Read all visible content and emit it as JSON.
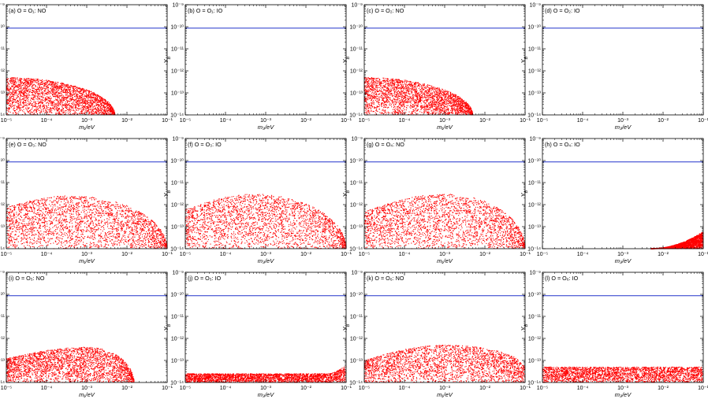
{
  "figure": {
    "colors": {
      "scatter": "#ff0000",
      "bound": "#2233cc",
      "frame": "#000000"
    },
    "grid": false
  },
  "chart_data": [
    {
      "id": "a",
      "type": "scatter",
      "label": "(a) O = O₁: NO",
      "xlabel": "m₁/eV",
      "ylabel": "Y_B",
      "x_scale": "log",
      "y_scale": "log",
      "xlim": [
        1e-05,
        0.1
      ],
      "ylim": [
        1e-14,
        1e-09
      ],
      "xticks": [
        "10⁻⁵",
        "10⁻⁴",
        "10⁻³",
        "10⁻²",
        "10⁻¹"
      ],
      "yticks": [
        "10⁻¹⁴",
        "10⁻¹³",
        "10⁻¹²",
        "10⁻¹¹",
        "10⁻¹⁰",
        "10⁻⁹"
      ],
      "bound_line": 8.7e-11,
      "region": {
        "shape": "decay",
        "peak_x": 1e-05,
        "peak_y": 5e-13,
        "x_end": 0.005,
        "y_floor": 1e-14
      }
    },
    {
      "id": "b",
      "type": "scatter",
      "label": "(b) O = O₁: IO",
      "xlabel": "m₃/eV",
      "ylabel": "Y_B",
      "x_scale": "log",
      "y_scale": "log",
      "xlim": [
        1e-05,
        0.1
      ],
      "ylim": [
        1e-14,
        1e-09
      ],
      "xticks": [
        "10⁻⁵",
        "10⁻⁴",
        "10⁻³",
        "10⁻²",
        "10⁻¹"
      ],
      "yticks": [
        "10⁻¹⁴",
        "10⁻¹³",
        "10⁻¹²",
        "10⁻¹¹",
        "10⁻¹⁰",
        "10⁻⁹"
      ],
      "bound_line": 8.7e-11,
      "region": null
    },
    {
      "id": "c",
      "type": "scatter",
      "label": "(c) O = O₂: NO",
      "xlabel": "m₁/eV",
      "ylabel": "Y_B",
      "x_scale": "log",
      "y_scale": "log",
      "xlim": [
        1e-05,
        0.1
      ],
      "ylim": [
        1e-14,
        1e-09
      ],
      "xticks": [
        "10⁻⁵",
        "10⁻⁴",
        "10⁻³",
        "10⁻²",
        "10⁻¹"
      ],
      "yticks": [
        "10⁻¹⁴",
        "10⁻¹³",
        "10⁻¹²",
        "10⁻¹¹",
        "10⁻¹⁰",
        "10⁻⁹"
      ],
      "bound_line": 8.7e-11,
      "region": {
        "shape": "decay",
        "peak_x": 1e-05,
        "peak_y": 5e-13,
        "x_end": 0.005,
        "y_floor": 1e-14
      }
    },
    {
      "id": "d",
      "type": "scatter",
      "label": "(d) O = O₂: IO",
      "xlabel": "m₃/eV",
      "ylabel": "Y_B",
      "x_scale": "log",
      "y_scale": "log",
      "xlim": [
        1e-05,
        0.1
      ],
      "ylim": [
        1e-14,
        1e-09
      ],
      "xticks": [
        "10⁻⁵",
        "10⁻⁴",
        "10⁻³",
        "10⁻²",
        "10⁻¹"
      ],
      "yticks": [
        "10⁻¹⁴",
        "10⁻¹³",
        "10⁻¹²",
        "10⁻¹¹",
        "10⁻¹⁰",
        "10⁻⁹"
      ],
      "bound_line": 8.7e-11,
      "region": null
    },
    {
      "id": "e",
      "type": "scatter",
      "label": "(e) O = O₃: NO",
      "xlabel": "m₁/eV",
      "ylabel": "Y_B",
      "x_scale": "log",
      "y_scale": "log",
      "xlim": [
        1e-05,
        0.1
      ],
      "ylim": [
        1e-14,
        1e-09
      ],
      "xticks": [
        "10⁻⁵",
        "10⁻⁴",
        "10⁻³",
        "10⁻²",
        "10⁻¹"
      ],
      "yticks": [
        "10⁻¹⁴",
        "10⁻¹³",
        "10⁻¹²",
        "10⁻¹¹",
        "10⁻¹⁰",
        "10⁻⁹"
      ],
      "bound_line": 8.7e-11,
      "region": {
        "shape": "hump",
        "x_start": 1e-05,
        "y_start": 8e-13,
        "peak_x": 0.0004,
        "peak_y": 2.5e-12,
        "x_end": 0.1,
        "y_floor": 1e-14
      }
    },
    {
      "id": "f",
      "type": "scatter",
      "label": "(f) O = O₃: IO",
      "xlabel": "m₃/eV",
      "ylabel": "Y_B",
      "x_scale": "log",
      "y_scale": "log",
      "xlim": [
        1e-05,
        0.1
      ],
      "ylim": [
        1e-14,
        1e-09
      ],
      "xticks": [
        "10⁻⁵",
        "10⁻⁴",
        "10⁻³",
        "10⁻²",
        "10⁻¹"
      ],
      "yticks": [
        "10⁻¹⁴",
        "10⁻¹³",
        "10⁻¹²",
        "10⁻¹¹",
        "10⁻¹⁰",
        "10⁻⁹"
      ],
      "bound_line": 8.7e-11,
      "region": {
        "shape": "hump",
        "x_start": 1e-05,
        "y_start": 6e-13,
        "peak_x": 0.0005,
        "peak_y": 3e-12,
        "x_end": 0.1,
        "y_floor": 1e-14
      }
    },
    {
      "id": "g",
      "type": "scatter",
      "label": "(g) O = O₄: NO",
      "xlabel": "m₁/eV",
      "ylabel": "Y_B",
      "x_scale": "log",
      "y_scale": "log",
      "xlim": [
        1e-05,
        0.1
      ],
      "ylim": [
        1e-14,
        1e-09
      ],
      "xticks": [
        "10⁻⁵",
        "10⁻⁴",
        "10⁻³",
        "10⁻²",
        "10⁻¹"
      ],
      "yticks": [
        "10⁻¹⁴",
        "10⁻¹³",
        "10⁻¹²",
        "10⁻¹¹",
        "10⁻¹⁰",
        "10⁻⁹"
      ],
      "bound_line": 8.7e-11,
      "region": {
        "shape": "hump",
        "x_start": 1e-05,
        "y_start": 5e-13,
        "peak_x": 0.001,
        "peak_y": 3e-12,
        "x_end": 0.1,
        "y_floor": 1e-14
      }
    },
    {
      "id": "h",
      "type": "scatter",
      "label": "(h) O = O₄: IO",
      "xlabel": "m₃/eV",
      "ylabel": "Y_B",
      "x_scale": "log",
      "y_scale": "log",
      "xlim": [
        1e-05,
        0.1
      ],
      "ylim": [
        1e-14,
        1e-09
      ],
      "xticks": [
        "10⁻⁵",
        "10⁻⁴",
        "10⁻³",
        "10⁻²",
        "10⁻¹"
      ],
      "yticks": [
        "10⁻¹⁴",
        "10⁻¹³",
        "10⁻¹²",
        "10⁻¹¹",
        "10⁻¹⁰",
        "10⁻⁹"
      ],
      "bound_line": 8.7e-11,
      "region": {
        "shape": "rise",
        "x_start": 0.005,
        "y_start": 1e-14,
        "x_end": 0.1,
        "y_end": 6e-14,
        "y_floor": 1e-14
      }
    },
    {
      "id": "i",
      "type": "scatter",
      "label": "(i) O = O₅: NO",
      "xlabel": "m₁/eV",
      "ylabel": "Y_B",
      "x_scale": "log",
      "y_scale": "log",
      "xlim": [
        1e-05,
        0.1
      ],
      "ylim": [
        1e-14,
        1e-09
      ],
      "xticks": [
        "10⁻⁵",
        "10⁻⁴",
        "10⁻³",
        "10⁻²",
        "10⁻¹"
      ],
      "yticks": [
        "10⁻¹⁴",
        "10⁻¹³",
        "10⁻¹²",
        "10⁻¹¹",
        "10⁻¹⁰",
        "10⁻⁹"
      ],
      "bound_line": 8.7e-11,
      "region": {
        "shape": "hump",
        "x_start": 1e-05,
        "y_start": 1.2e-13,
        "peak_x": 0.001,
        "peak_y": 4e-13,
        "x_end": 0.015,
        "y_floor": 1e-14
      }
    },
    {
      "id": "j",
      "type": "scatter",
      "label": "(j) O = O₅: IO",
      "xlabel": "m₃/eV",
      "ylabel": "Y_B",
      "x_scale": "log",
      "y_scale": "log",
      "xlim": [
        1e-05,
        0.1
      ],
      "ylim": [
        1e-14,
        1e-09
      ],
      "xticks": [
        "10⁻⁵",
        "10⁻⁴",
        "10⁻³",
        "10⁻²",
        "10⁻¹"
      ],
      "yticks": [
        "10⁻¹⁴",
        "10⁻¹³",
        "10⁻¹²",
        "10⁻¹¹",
        "10⁻¹⁰",
        "10⁻⁹"
      ],
      "bound_line": 8.7e-11,
      "region": {
        "shape": "band_rise",
        "y_band": 2.5e-14,
        "x_rise": 0.03,
        "y_end": 6e-14,
        "y_floor": 1e-14
      }
    },
    {
      "id": "k",
      "type": "scatter",
      "label": "(k) O = O₆: NO",
      "xlabel": "m₁/eV",
      "ylabel": "Y_B",
      "x_scale": "log",
      "y_scale": "log",
      "xlim": [
        1e-05,
        0.1
      ],
      "ylim": [
        1e-14,
        1e-09
      ],
      "xticks": [
        "10⁻⁵",
        "10⁻⁴",
        "10⁻³",
        "10⁻²",
        "10⁻¹"
      ],
      "yticks": [
        "10⁻¹⁴",
        "10⁻¹³",
        "10⁻¹²",
        "10⁻¹¹",
        "10⁻¹⁰",
        "10⁻⁹"
      ],
      "bound_line": 8.7e-11,
      "region": {
        "shape": "hump",
        "x_start": 1e-05,
        "y_start": 1e-13,
        "peak_x": 0.001,
        "peak_y": 5e-13,
        "x_end": 0.1,
        "y_end": 4e-14,
        "y_floor": 1e-14
      }
    },
    {
      "id": "l",
      "type": "scatter",
      "label": "(l) O = O₆: IO",
      "xlabel": "m₃/eV",
      "ylabel": "Y_B",
      "x_scale": "log",
      "y_scale": "log",
      "xlim": [
        1e-05,
        0.1
      ],
      "ylim": [
        1e-14,
        1e-09
      ],
      "xticks": [
        "10⁻⁵",
        "10⁻⁴",
        "10⁻³",
        "10⁻²",
        "10⁻¹"
      ],
      "yticks": [
        "10⁻¹⁴",
        "10⁻¹³",
        "10⁻¹²",
        "10⁻¹¹",
        "10⁻¹⁰",
        "10⁻⁹"
      ],
      "bound_line": 8.7e-11,
      "region": {
        "shape": "band",
        "y_band": 5e-14,
        "y_floor": 1e-14
      }
    }
  ]
}
